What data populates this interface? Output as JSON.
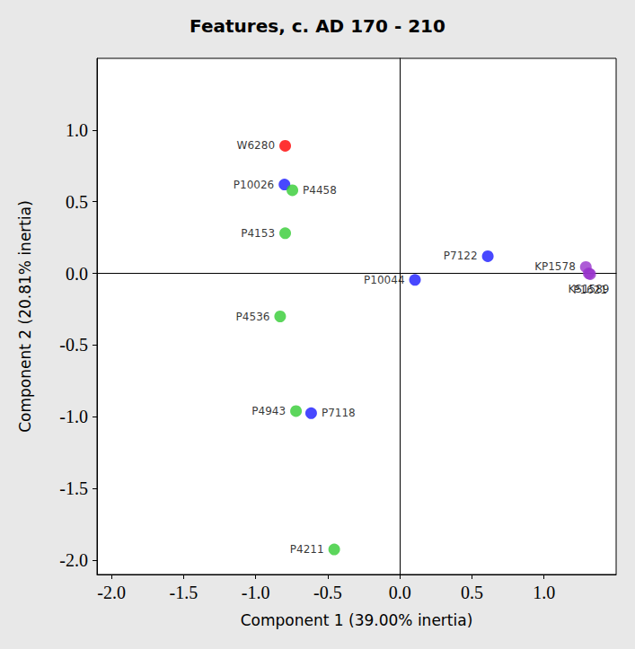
{
  "chart_data": {
    "type": "scatter",
    "title": "Features, c. AD 170 - 210",
    "x_label": "Component 1 (39.00% inertia)",
    "y_label": "Component 2 (20.81% inertia)",
    "labels": [
      "W6280",
      "P10026",
      "P4458",
      "P4153",
      "P4536",
      "P4943",
      "P7118",
      "P4211",
      "P10044",
      "P7122",
      "KP1578",
      "KS1589",
      "P1621"
    ],
    "x": [
      -0.795,
      -0.8,
      -0.745,
      -0.795,
      -0.83,
      -0.72,
      -0.615,
      -0.455,
      0.105,
      0.61,
      1.29,
      1.31,
      1.32
    ],
    "values": [
      0.89,
      0.62,
      0.58,
      0.28,
      -0.3,
      -0.96,
      -0.975,
      -1.925,
      -0.045,
      0.12,
      0.045,
      0.0,
      -0.005
    ],
    "colors": [
      "#ff0000",
      "#1a1aff",
      "#33cc33",
      "#33cc33",
      "#33cc33",
      "#33cc33",
      "#1a1aff",
      "#33cc33",
      "#1a1aff",
      "#1a1aff",
      "#9933cc",
      "#9933cc",
      "#9933cc"
    ],
    "xlim": [
      -2.1,
      1.5
    ],
    "ylim": [
      -2.1,
      1.5
    ],
    "xticks": [
      {
        "value": -2.0,
        "label": "-2.0"
      },
      {
        "value": -1.5,
        "label": "-1.5"
      },
      {
        "value": -1.0,
        "label": "-1.0"
      },
      {
        "value": -0.5,
        "label": "-0.5"
      },
      {
        "value": 0,
        "label": "0.0"
      },
      {
        "value": 0.5,
        "label": "0.5"
      },
      {
        "value": 1.0,
        "label": "1.0"
      }
    ],
    "yticks": [
      {
        "value": -2.0,
        "label": "-2.0"
      },
      {
        "value": -1.5,
        "label": "-1.5"
      },
      {
        "value": -1.0,
        "label": "-1.0"
      },
      {
        "value": -0.5,
        "label": "-0.5"
      },
      {
        "value": 0,
        "label": "0.0"
      },
      {
        "value": 0.5,
        "label": "0.5"
      },
      {
        "value": 1.0,
        "label": "1.0"
      }
    ],
    "grid": false,
    "marker": "circle"
  }
}
